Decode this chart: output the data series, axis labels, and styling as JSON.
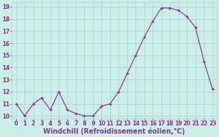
{
  "x": [
    0,
    1,
    2,
    3,
    4,
    5,
    6,
    7,
    8,
    9,
    10,
    11,
    12,
    13,
    14,
    15,
    16,
    17,
    18,
    19,
    20,
    21,
    22,
    23
  ],
  "y": [
    11,
    10,
    11,
    11.5,
    10.5,
    12,
    10.5,
    10.2,
    10,
    10,
    10.8,
    11,
    12,
    13.5,
    15,
    16.5,
    17.8,
    18.9,
    18.9,
    18.7,
    18.2,
    17.3,
    14.5,
    12.2
  ],
  "xlabel": "Windchill (Refroidissement éolien,°C)",
  "line_color": "#883388",
  "marker": "+",
  "bg_color": "#cceee8",
  "grid_color": "#aacccc",
  "text_color": "#883388",
  "ylim_min": 9.8,
  "ylim_max": 19.4,
  "xlim_min": -0.5,
  "xlim_max": 23.5,
  "yticks": [
    10,
    11,
    12,
    13,
    14,
    15,
    16,
    17,
    18,
    19
  ],
  "xticks": [
    0,
    1,
    2,
    3,
    4,
    5,
    6,
    7,
    8,
    9,
    10,
    11,
    12,
    13,
    14,
    15,
    16,
    17,
    18,
    19,
    20,
    21,
    22,
    23
  ],
  "tick_fontsize": 5.8,
  "xlabel_fontsize": 7.0,
  "marker_size": 3,
  "linewidth": 0.9
}
